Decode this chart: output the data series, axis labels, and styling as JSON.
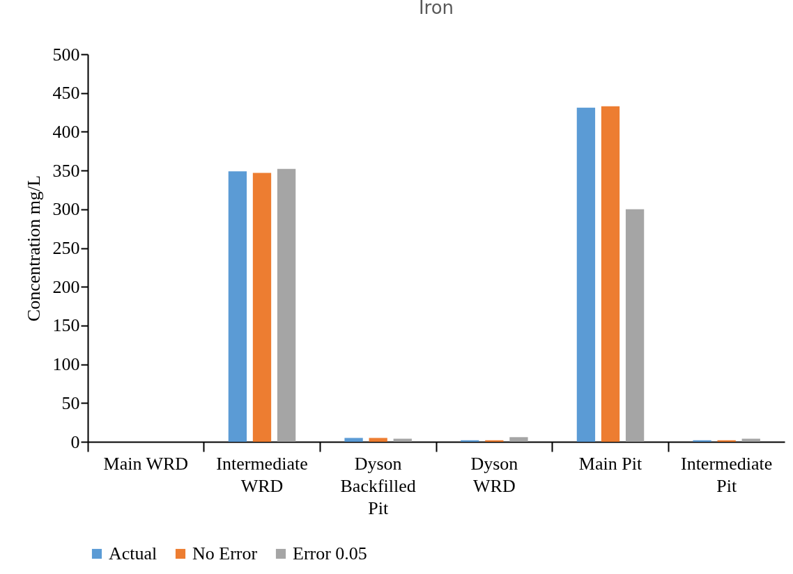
{
  "chart_data": {
    "type": "bar",
    "title": "Iron",
    "ylabel": "Concentration mg/L",
    "categories": [
      "Main WRD",
      "Intermediate WRD",
      "Dyson Backfilled Pit",
      "Dyson WRD",
      "Main Pit",
      "Intermediate Pit"
    ],
    "series": [
      {
        "name": "Actual",
        "color": "#5b9bd5",
        "values": [
          0,
          349,
          5,
          2,
          431,
          2
        ]
      },
      {
        "name": "No Error",
        "color": "#ed7d31",
        "values": [
          0,
          347,
          5,
          2,
          433,
          2
        ]
      },
      {
        "name": "Error 0.05",
        "color": "#a5a5a5",
        "values": [
          0,
          352,
          4,
          6,
          300,
          4
        ]
      }
    ],
    "ylim": [
      0,
      500
    ],
    "yticks": [
      0,
      50,
      100,
      150,
      200,
      250,
      300,
      350,
      400,
      450,
      500
    ],
    "grid": false,
    "legend": "bottom"
  }
}
